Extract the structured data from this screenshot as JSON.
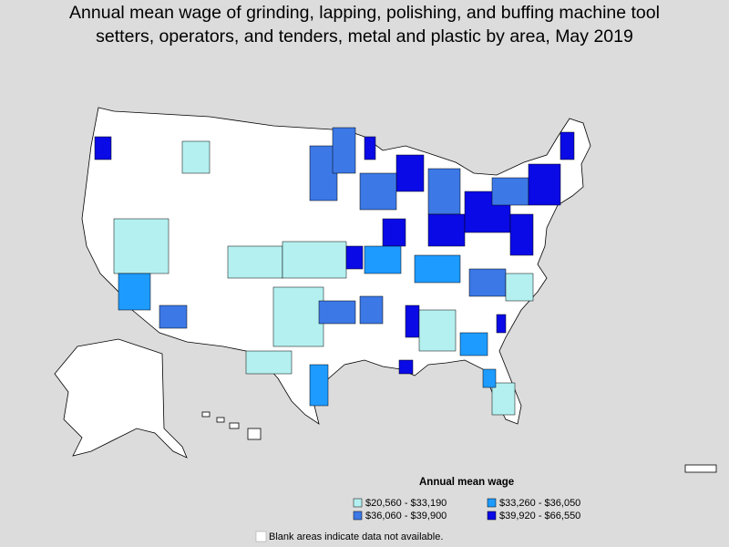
{
  "header": {
    "title": [
      "Annual mean wage of grinding, lapping, polishing, and buffing machine tool",
      "setters, operators, and tenders, metal and plastic by area, May 2019"
    ]
  },
  "legend": {
    "title": "Annual mean wage",
    "items": [
      {
        "label": "$20,560 - $33,190",
        "color": "#b4f0f0"
      },
      {
        "label": "$33,260 - $36,050",
        "color": "#1e9bff"
      },
      {
        "label": "$36,060 - $39,900",
        "color": "#3c78e6"
      },
      {
        "label": "$39,920 - $66,550",
        "color": "#0a0ae6"
      }
    ]
  },
  "note": "Blank areas indicate data not available."
}
